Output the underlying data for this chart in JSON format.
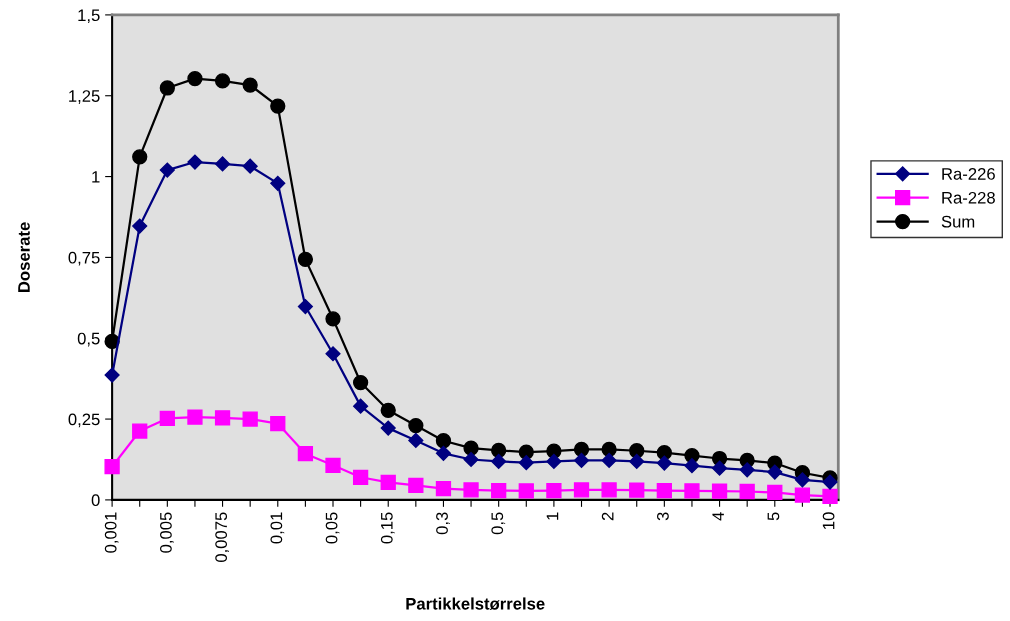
{
  "chart_data": {
    "type": "line",
    "xlabel": "Partikkelstørrelse",
    "ylabel": "Doserate",
    "categories": [
      "0,001",
      null,
      "0,005",
      null,
      "0,0075",
      null,
      "0,01",
      null,
      "0,05",
      null,
      "0,15",
      null,
      "0,3",
      null,
      "0,5",
      null,
      "1",
      null,
      "2",
      null,
      "3",
      null,
      "4",
      null,
      "5",
      null,
      "10"
    ],
    "series": [
      {
        "name": "Ra-226",
        "color": "#000080",
        "marker": "diamond",
        "values": [
          0.386,
          0.847,
          1.02,
          1.045,
          1.039,
          1.032,
          0.979,
          0.598,
          0.452,
          0.29,
          0.222,
          0.184,
          0.144,
          0.125,
          0.119,
          0.115,
          0.119,
          0.122,
          0.122,
          0.119,
          0.114,
          0.106,
          0.098,
          0.093,
          0.086,
          0.062,
          0.055
        ]
      },
      {
        "name": "Ra-228",
        "color": "#ff00ff",
        "marker": "square",
        "values": [
          0.103,
          0.213,
          0.252,
          0.256,
          0.254,
          0.25,
          0.236,
          0.143,
          0.107,
          0.07,
          0.054,
          0.045,
          0.035,
          0.031,
          0.029,
          0.028,
          0.029,
          0.031,
          0.031,
          0.03,
          0.029,
          0.028,
          0.027,
          0.026,
          0.023,
          0.015,
          0.011
        ]
      },
      {
        "name": "Sum",
        "color": "#000000",
        "marker": "circle",
        "values": [
          0.49,
          1.061,
          1.274,
          1.303,
          1.296,
          1.283,
          1.218,
          0.744,
          0.56,
          0.363,
          0.277,
          0.23,
          0.183,
          0.16,
          0.153,
          0.148,
          0.151,
          0.156,
          0.156,
          0.152,
          0.146,
          0.137,
          0.128,
          0.122,
          0.114,
          0.084,
          0.068
        ]
      }
    ],
    "ylim": [
      0,
      1.5
    ],
    "yticks": [
      0,
      {
        "value": 0.25,
        "label": "0,25"
      },
      {
        "value": 0.5,
        "label": "0,5"
      },
      {
        "value": 0.75,
        "label": "0,75"
      },
      1,
      {
        "value": 1.25,
        "label": "1,25"
      },
      {
        "value": 1.5,
        "label": "1,5"
      }
    ],
    "grid": false,
    "legend": "right",
    "line_style": "solid"
  }
}
